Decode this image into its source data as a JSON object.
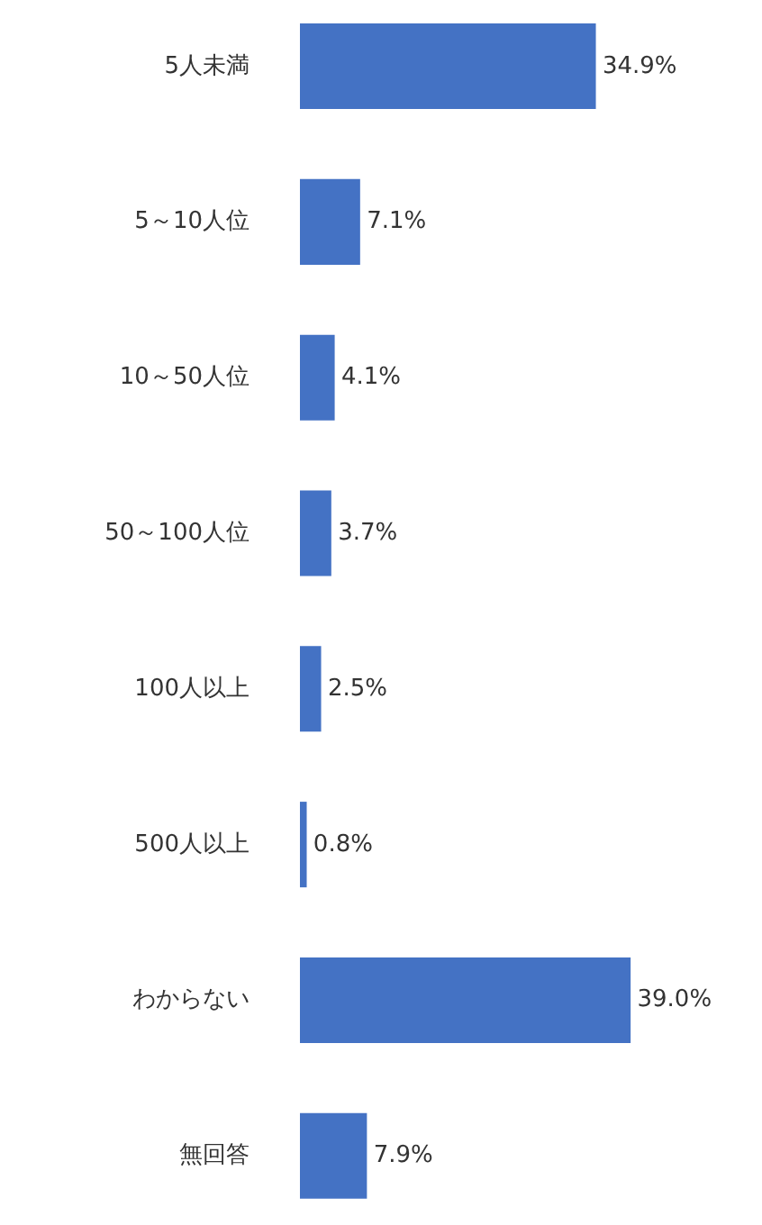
{
  "chart_data": {
    "type": "bar",
    "orientation": "horizontal",
    "categories": [
      "5人未満",
      "5～10人位",
      "10～50人位",
      "50～100人位",
      "100人以上",
      "500人以上",
      "わからない",
      "無回答"
    ],
    "values": [
      34.9,
      7.1,
      4.1,
      3.7,
      2.5,
      0.8,
      39.0,
      7.9
    ],
    "color": "#4472c4",
    "value_labels": [
      "34.9%",
      "7.1%",
      "4.1%",
      "3.7%",
      "2.5%",
      "0.8%",
      "39.0%",
      "7.9%"
    ]
  }
}
